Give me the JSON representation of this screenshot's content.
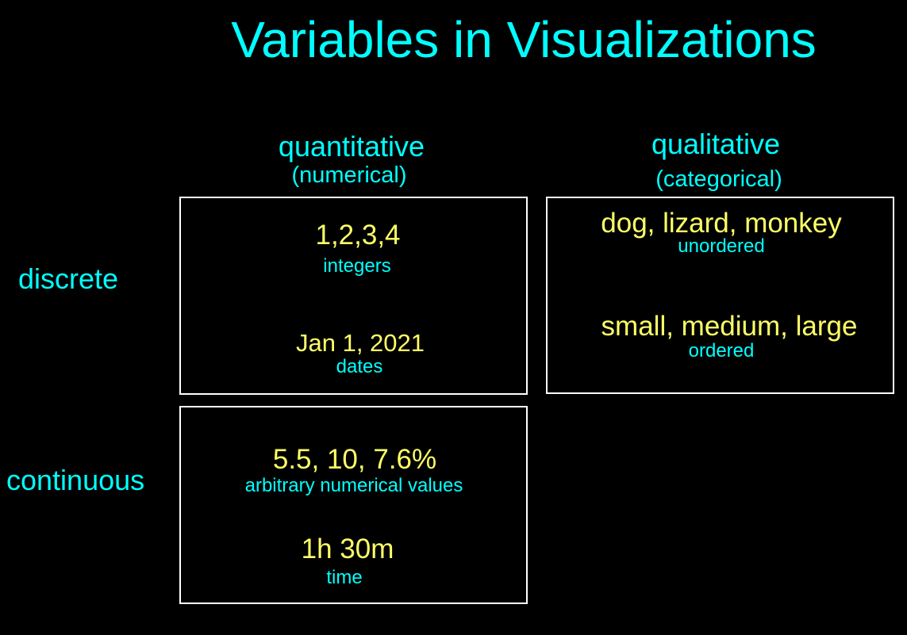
{
  "title": "Variables in Visualizations",
  "columns": {
    "quantitative": {
      "heading": "quantitative",
      "subheading": "(numerical)"
    },
    "qualitative": {
      "heading": "qualitative",
      "subheading": "(categorical)"
    }
  },
  "rows": {
    "discrete": "discrete",
    "continuous": "continuous"
  },
  "cells": {
    "discrete_quantitative": [
      {
        "value": "1,2,3,4",
        "note": "integers"
      },
      {
        "value": "Jan 1, 2021",
        "note": "dates"
      }
    ],
    "discrete_qualitative": [
      {
        "value": "dog, lizard, monkey",
        "note": "unordered"
      },
      {
        "value": "small, medium, large",
        "note": "ordered"
      }
    ],
    "continuous_quantitative": [
      {
        "value": "5.5, 10, 7.6%",
        "note": "arbitrary numerical values"
      },
      {
        "value": "1h 30m",
        "note": "time"
      }
    ]
  },
  "colors": {
    "background": "#000000",
    "heading": "#00ffff",
    "value": "#ffff66",
    "border": "#ffffff"
  }
}
